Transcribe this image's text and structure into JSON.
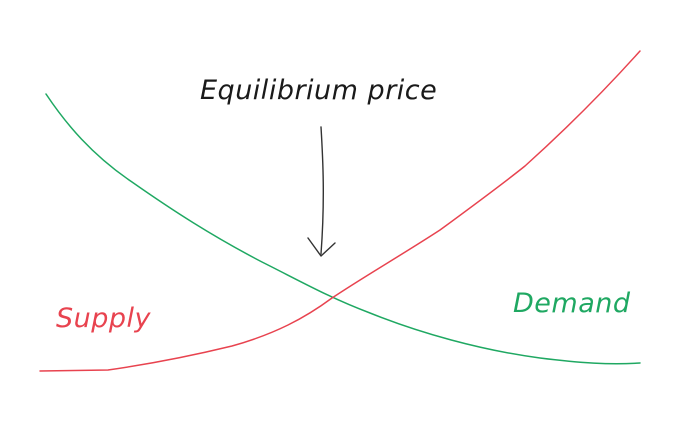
{
  "annotation": {
    "label": "Equilibrium price"
  },
  "curves": {
    "supply": {
      "label": "Supply",
      "color": "#e8434f"
    },
    "demand": {
      "label": "Demand",
      "color": "#1fa862"
    }
  },
  "colors": {
    "annotation_text": "#1a1a1a",
    "arrow": "#333333",
    "background": "#ffffff"
  }
}
